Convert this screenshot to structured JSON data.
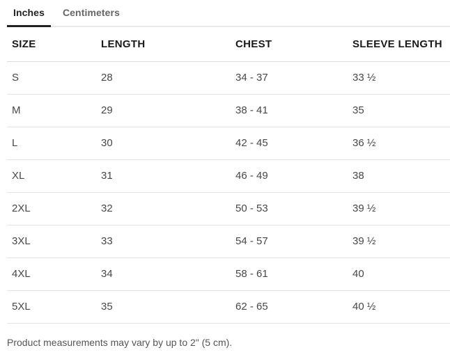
{
  "tabs": [
    {
      "label": "Inches",
      "active": true
    },
    {
      "label": "Centimeters",
      "active": false
    }
  ],
  "table": {
    "headers": [
      "SIZE",
      "LENGTH",
      "CHEST",
      "SLEEVE LENGTH"
    ],
    "rows": [
      [
        "S",
        "28",
        "34 - 37",
        "33 ½"
      ],
      [
        "M",
        "29",
        "38 - 41",
        "35"
      ],
      [
        "L",
        "30",
        "42 - 45",
        "36 ½"
      ],
      [
        "XL",
        "31",
        "46 - 49",
        "38"
      ],
      [
        "2XL",
        "32",
        "50 - 53",
        "39 ½"
      ],
      [
        "3XL",
        "33",
        "54 - 57",
        "39 ½"
      ],
      [
        "4XL",
        "34",
        "58 - 61",
        "40"
      ],
      [
        "5XL",
        "35",
        "62 - 65",
        "40 ½"
      ]
    ]
  },
  "footer": {
    "note": "Product measurements may vary by up to 2\" (5 cm)."
  },
  "colors": {
    "active_tab_text": "#222222",
    "active_tab_underline": "#222222",
    "inactive_tab_text": "#666666",
    "tabbar_rule": "#e8e8e8",
    "header_text": "#1a1a1a",
    "cell_text": "#474747",
    "row_divider": "#e4e4e4",
    "note_text": "#555555"
  }
}
